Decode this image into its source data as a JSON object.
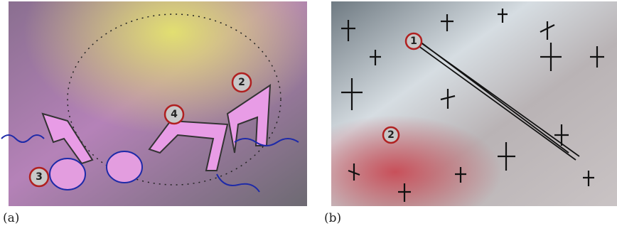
{
  "panels": [
    {
      "label": "(a)",
      "markers": [
        "2",
        "4",
        "3"
      ]
    },
    {
      "label": "(b)",
      "markers": [
        "1",
        "2"
      ]
    }
  ]
}
